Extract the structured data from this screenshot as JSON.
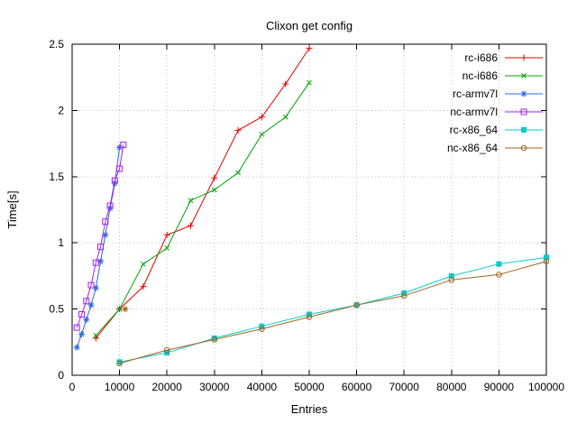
{
  "chart_data": {
    "type": "line",
    "title": "Clixon get config",
    "xlabel": "Entries",
    "ylabel": "Time[s]",
    "xlim": [
      0,
      100000
    ],
    "ylim": [
      0,
      2.5
    ],
    "xticks": [
      0,
      10000,
      20000,
      30000,
      40000,
      50000,
      60000,
      70000,
      80000,
      90000,
      100000
    ],
    "yticks": [
      0,
      0.5,
      1,
      1.5,
      2,
      2.5
    ],
    "grid": true,
    "legend_position": "top-right-inside",
    "series": [
      {
        "name": "rc-i686",
        "color": "#e60000",
        "marker": "plus",
        "points": [
          [
            5000,
            0.28
          ],
          [
            10000,
            0.5
          ],
          [
            15000,
            0.67
          ],
          [
            20000,
            1.06
          ],
          [
            25000,
            1.13
          ],
          [
            30000,
            1.49
          ],
          [
            35000,
            1.85
          ],
          [
            40000,
            1.95
          ],
          [
            45000,
            2.2
          ],
          [
            50000,
            2.47
          ]
        ]
      },
      {
        "name": "nc-i686",
        "color": "#00a000",
        "marker": "cross",
        "points": [
          [
            5000,
            0.3
          ],
          [
            10000,
            0.5
          ],
          [
            15000,
            0.84
          ],
          [
            20000,
            0.96
          ],
          [
            25000,
            1.32
          ],
          [
            30000,
            1.4
          ],
          [
            35000,
            1.53
          ],
          [
            40000,
            1.82
          ],
          [
            45000,
            1.95
          ],
          [
            50000,
            2.21
          ]
        ]
      },
      {
        "name": "rc-armv7l",
        "color": "#2a66e0",
        "marker": "asterisk",
        "points": [
          [
            1000,
            0.21
          ],
          [
            2000,
            0.31
          ],
          [
            3000,
            0.42
          ],
          [
            4000,
            0.53
          ],
          [
            5000,
            0.66
          ],
          [
            6000,
            0.86
          ],
          [
            7000,
            1.06
          ],
          [
            8000,
            1.26
          ],
          [
            9000,
            1.45
          ],
          [
            10000,
            1.72
          ]
        ]
      },
      {
        "name": "nc-armv7l",
        "color": "#a020f0",
        "marker": "square-open",
        "points": [
          [
            1000,
            0.36
          ],
          [
            2000,
            0.46
          ],
          [
            3000,
            0.56
          ],
          [
            4000,
            0.68
          ],
          [
            5000,
            0.85
          ],
          [
            6000,
            0.97
          ],
          [
            7000,
            1.16
          ],
          [
            8000,
            1.28
          ],
          [
            9000,
            1.47
          ],
          [
            10000,
            1.56
          ],
          [
            10800,
            1.74
          ]
        ]
      },
      {
        "name": "rc-x86_64",
        "color": "#00cdcd",
        "marker": "square-filled",
        "points": [
          [
            10000,
            0.1
          ],
          [
            20000,
            0.17
          ],
          [
            30000,
            0.28
          ],
          [
            40000,
            0.37
          ],
          [
            50000,
            0.46
          ],
          [
            60000,
            0.53
          ],
          [
            70000,
            0.62
          ],
          [
            80000,
            0.75
          ],
          [
            90000,
            0.84
          ],
          [
            100000,
            0.89
          ]
        ]
      },
      {
        "name": "nc-x86_64",
        "color": "#a0651e",
        "marker": "circle-open",
        "points": [
          [
            10000,
            0.09
          ],
          [
            20000,
            0.19
          ],
          [
            30000,
            0.27
          ],
          [
            40000,
            0.35
          ],
          [
            50000,
            0.44
          ],
          [
            60000,
            0.53
          ],
          [
            70000,
            0.6
          ],
          [
            80000,
            0.72
          ],
          [
            90000,
            0.76
          ],
          [
            100000,
            0.86
          ]
        ]
      }
    ],
    "stray_marker": {
      "x": 11200,
      "y": 0.5,
      "color": "#a0651e",
      "marker": "asterisk"
    }
  }
}
